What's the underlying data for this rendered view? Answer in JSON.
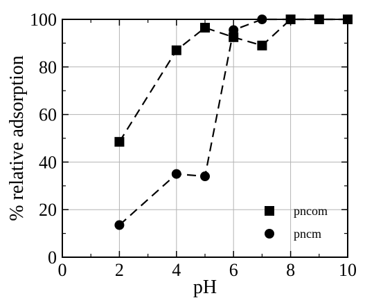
{
  "chart_data": {
    "type": "line",
    "title": "",
    "xlabel": "pH",
    "ylabel": "% relative adsorption",
    "xlim": [
      0,
      10
    ],
    "ylim": [
      0,
      100
    ],
    "xticks": [
      "0",
      "2",
      "4",
      "6",
      "8",
      "10"
    ],
    "yticks": [
      "0",
      "20",
      "40",
      "60",
      "80",
      "100"
    ],
    "grid": true,
    "legend_position": "bottom-right",
    "series": [
      {
        "name": "pncom",
        "marker": "square",
        "line_style": "dashed",
        "color": "#000000",
        "x": [
          2,
          4,
          5,
          6,
          7,
          8,
          9,
          10
        ],
        "y": [
          48.5,
          87,
          96.5,
          92.5,
          89,
          100,
          100,
          100
        ]
      },
      {
        "name": "pncm",
        "marker": "circle",
        "line_style": "dashed",
        "color": "#000000",
        "x": [
          2,
          4,
          5,
          6,
          7,
          8,
          9,
          10
        ],
        "y": [
          13.5,
          35,
          34,
          95.5,
          100,
          100,
          100,
          100
        ]
      }
    ]
  }
}
